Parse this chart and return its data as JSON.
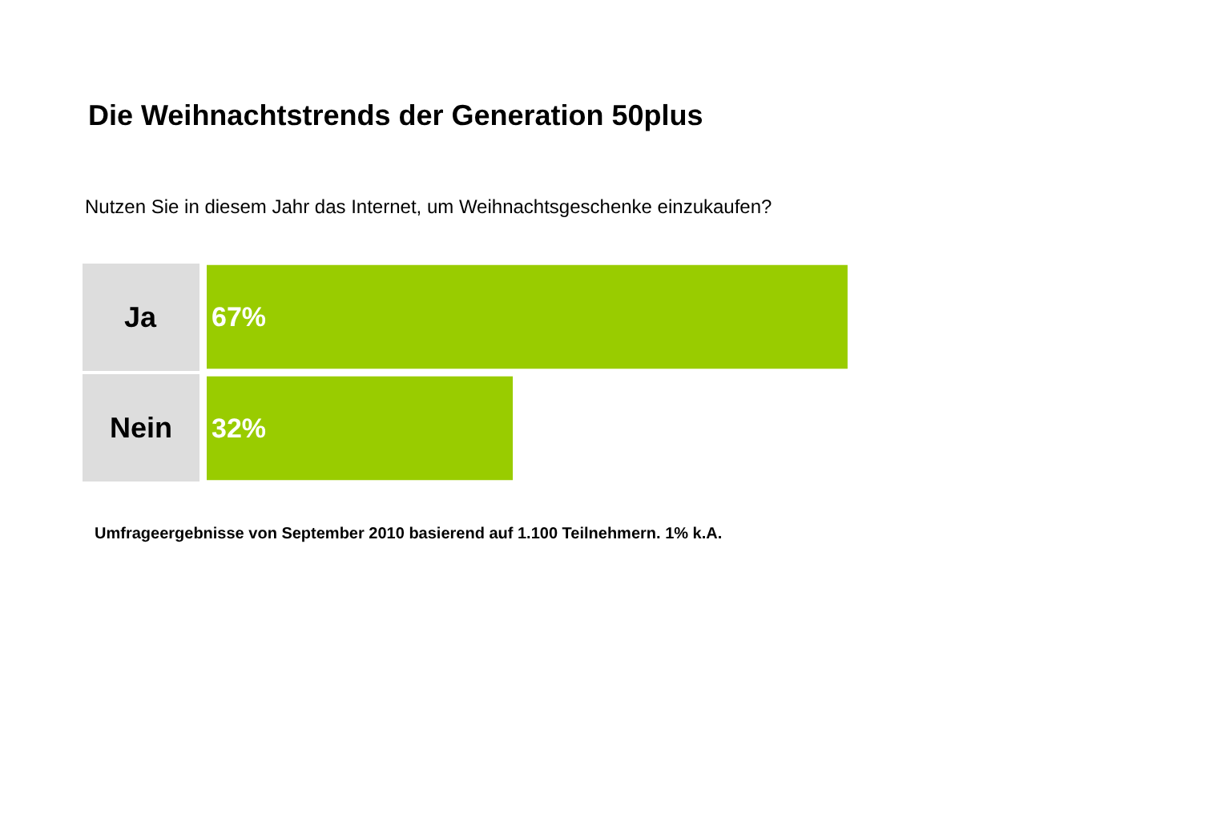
{
  "chart_data": {
    "type": "bar",
    "orientation": "horizontal",
    "title": "Die Weihnachtstrends der Generation 50plus",
    "subtitle": "Nutzen Sie in diesem Jahr das Internet, um Weihnachtsgeschenke einzukaufen?",
    "categories": [
      "Ja",
      "Nein"
    ],
    "values": [
      67,
      32
    ],
    "color": "#99cc00",
    "value_labels": [
      "67%",
      "32%"
    ],
    "legend": false,
    "tick_labels": false,
    "annotations": [
      "Umfrageergebnisse von September 2010 basierend auf 1.100 Teilnehmern. 1% k.A."
    ]
  }
}
